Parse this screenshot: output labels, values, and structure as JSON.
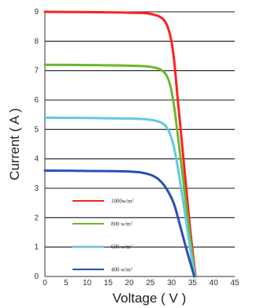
{
  "chart_data": {
    "type": "line",
    "title": "",
    "xlabel": "Voltage ( V )",
    "ylabel": "Current ( A )",
    "xlim": [
      0,
      45
    ],
    "ylim": [
      0,
      9
    ],
    "x_ticks": [
      "0",
      "5",
      "10",
      "15",
      "20",
      "25",
      "30",
      "35",
      "40",
      "45"
    ],
    "y_ticks": [
      "0",
      "1",
      "2",
      "3",
      "4",
      "5",
      "6",
      "7",
      "8",
      "9"
    ],
    "grid": "horizontal",
    "legend_position": "lower-left",
    "series": [
      {
        "name": "1000w/m²",
        "color": "#ff2020",
        "points": [
          [
            0,
            9.0
          ],
          [
            10,
            8.99
          ],
          [
            20,
            8.97
          ],
          [
            25,
            8.93
          ],
          [
            28,
            8.75
          ],
          [
            29.5,
            8.3
          ],
          [
            30.5,
            7.5
          ],
          [
            31.5,
            6.0
          ],
          [
            32.5,
            4.5
          ],
          [
            33.5,
            3.0
          ],
          [
            34.5,
            1.5
          ],
          [
            35.7,
            0
          ]
        ]
      },
      {
        "name": "800 w/m²",
        "color": "#6ab82c",
        "points": [
          [
            0,
            7.2
          ],
          [
            10,
            7.19
          ],
          [
            20,
            7.17
          ],
          [
            25,
            7.13
          ],
          [
            28,
            6.98
          ],
          [
            29.5,
            6.6
          ],
          [
            30.5,
            5.9
          ],
          [
            31.5,
            4.8
          ],
          [
            32.5,
            3.6
          ],
          [
            33.5,
            2.4
          ],
          [
            34.5,
            1.2
          ],
          [
            35.6,
            0
          ]
        ]
      },
      {
        "name": "600 w/m²",
        "color": "#64c8e6",
        "points": [
          [
            0,
            5.4
          ],
          [
            10,
            5.39
          ],
          [
            20,
            5.37
          ],
          [
            25,
            5.33
          ],
          [
            28,
            5.2
          ],
          [
            29.5,
            4.9
          ],
          [
            30.5,
            4.45
          ],
          [
            31.5,
            3.7
          ],
          [
            32.5,
            2.8
          ],
          [
            33.5,
            1.85
          ],
          [
            34.5,
            0.9
          ],
          [
            35.5,
            0
          ]
        ]
      },
      {
        "name": "400 w/m²",
        "color": "#2a4fb0",
        "points": [
          [
            0,
            3.6
          ],
          [
            10,
            3.59
          ],
          [
            20,
            3.57
          ],
          [
            24,
            3.5
          ],
          [
            26.5,
            3.35
          ],
          [
            28.5,
            3.05
          ],
          [
            30.5,
            2.5
          ],
          [
            32,
            1.75
          ],
          [
            33.5,
            0.95
          ],
          [
            35.4,
            0
          ]
        ]
      }
    ]
  }
}
